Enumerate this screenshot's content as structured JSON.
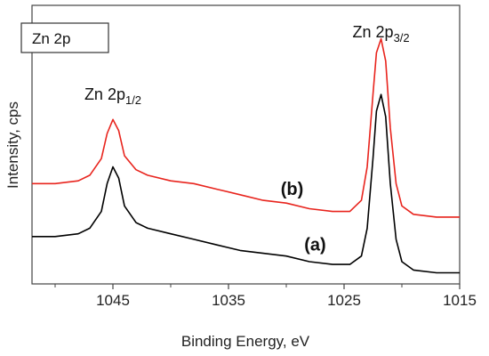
{
  "chart_data": {
    "type": "line",
    "xlabel": "Binding Energy, eV",
    "ylabel": "Intensity, cps",
    "xlim": [
      1052,
      1015
    ],
    "ylim": [
      0,
      1
    ],
    "x_reversed": true,
    "grid": false,
    "xticks": [
      1045,
      1035,
      1025,
      1015
    ],
    "xtick_labels": [
      "1045",
      "1035",
      "1025",
      "1015"
    ],
    "legend_box": "Zn 2p",
    "peak_labels": [
      {
        "main": "Zn 2p",
        "sub": "1/2",
        "x": 1045
      },
      {
        "main": "Zn 2p",
        "sub": "3/2",
        "x": 1021.8
      }
    ],
    "series": [
      {
        "name": "(a)",
        "color": "#000000",
        "points": [
          [
            1052,
            0.17
          ],
          [
            1050,
            0.17
          ],
          [
            1048,
            0.18
          ],
          [
            1047,
            0.2
          ],
          [
            1046,
            0.26
          ],
          [
            1045.5,
            0.36
          ],
          [
            1045,
            0.42
          ],
          [
            1044.5,
            0.38
          ],
          [
            1044,
            0.28
          ],
          [
            1043,
            0.22
          ],
          [
            1042,
            0.2
          ],
          [
            1040,
            0.18
          ],
          [
            1038,
            0.16
          ],
          [
            1036,
            0.14
          ],
          [
            1034,
            0.12
          ],
          [
            1032,
            0.11
          ],
          [
            1030,
            0.1
          ],
          [
            1028,
            0.08
          ],
          [
            1026,
            0.07
          ],
          [
            1024.5,
            0.07
          ],
          [
            1023.5,
            0.1
          ],
          [
            1023,
            0.2
          ],
          [
            1022.5,
            0.45
          ],
          [
            1022.2,
            0.62
          ],
          [
            1021.8,
            0.68
          ],
          [
            1021.4,
            0.6
          ],
          [
            1021,
            0.36
          ],
          [
            1020.5,
            0.16
          ],
          [
            1020,
            0.08
          ],
          [
            1019,
            0.05
          ],
          [
            1017,
            0.04
          ],
          [
            1015,
            0.04
          ]
        ]
      },
      {
        "name": "(b)",
        "color": "#e8241d",
        "points": [
          [
            1052,
            0.36
          ],
          [
            1050,
            0.36
          ],
          [
            1048,
            0.37
          ],
          [
            1047,
            0.39
          ],
          [
            1046,
            0.45
          ],
          [
            1045.5,
            0.54
          ],
          [
            1045,
            0.59
          ],
          [
            1044.5,
            0.55
          ],
          [
            1044,
            0.46
          ],
          [
            1043,
            0.41
          ],
          [
            1042,
            0.39
          ],
          [
            1040,
            0.37
          ],
          [
            1038,
            0.36
          ],
          [
            1036,
            0.34
          ],
          [
            1034,
            0.32
          ],
          [
            1032,
            0.3
          ],
          [
            1030,
            0.29
          ],
          [
            1028,
            0.27
          ],
          [
            1026,
            0.26
          ],
          [
            1024.5,
            0.26
          ],
          [
            1023.5,
            0.3
          ],
          [
            1023,
            0.42
          ],
          [
            1022.5,
            0.68
          ],
          [
            1022.2,
            0.83
          ],
          [
            1021.8,
            0.88
          ],
          [
            1021.4,
            0.8
          ],
          [
            1021,
            0.56
          ],
          [
            1020.5,
            0.36
          ],
          [
            1020,
            0.28
          ],
          [
            1019,
            0.25
          ],
          [
            1017,
            0.24
          ],
          [
            1015,
            0.24
          ]
        ]
      }
    ],
    "series_label_positions": [
      {
        "name": "(a)",
        "x": 1027.5,
        "y": 0.1
      },
      {
        "name": "(b)",
        "x": 1029.5,
        "y": 0.3
      }
    ]
  }
}
